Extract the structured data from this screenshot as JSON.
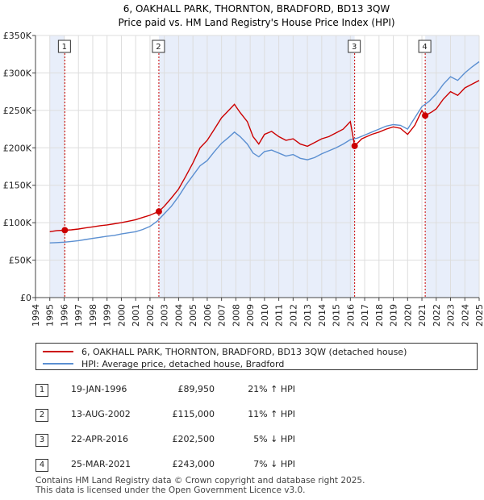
{
  "chart_data": {
    "type": "line",
    "title": "6, OAKHALL PARK, THORNTON, BRADFORD, BD13 3QW",
    "subtitle": "Price paid vs. HM Land Registry's House Price Index (HPI)",
    "xlim": [
      1994,
      2025
    ],
    "ylim": [
      0,
      350000
    ],
    "x_ticks": [
      "1994",
      "1995",
      "1996",
      "1997",
      "1998",
      "1999",
      "2000",
      "2001",
      "2002",
      "2003",
      "2004",
      "2005",
      "2006",
      "2007",
      "2008",
      "2009",
      "2010",
      "2011",
      "2012",
      "2013",
      "2014",
      "2015",
      "2016",
      "2017",
      "2018",
      "2019",
      "2020",
      "2021",
      "2022",
      "2023",
      "2024",
      "2025"
    ],
    "y_ticks": [
      {
        "value": 0,
        "label": "£0"
      },
      {
        "value": 50000,
        "label": "£50K"
      },
      {
        "value": 100000,
        "label": "£100K"
      },
      {
        "value": 150000,
        "label": "£150K"
      },
      {
        "value": 200000,
        "label": "£200K"
      },
      {
        "value": 250000,
        "label": "£250K"
      },
      {
        "value": 300000,
        "label": "£300K"
      },
      {
        "value": 350000,
        "label": "£350K"
      }
    ],
    "shaded_spans": [
      [
        1995.0,
        1996.05
      ],
      [
        2002.62,
        2016.3
      ],
      [
        2021.23,
        2025
      ]
    ],
    "series": [
      {
        "name": "6, OAKHALL PARK, THORNTON, BRADFORD, BD13 3QW (detached house)",
        "color": "#cc0000",
        "points": [
          [
            1995.0,
            88000
          ],
          [
            1995.5,
            89500
          ],
          [
            1996.05,
            89950
          ],
          [
            1996.5,
            90500
          ],
          [
            1997,
            91500
          ],
          [
            1997.5,
            93000
          ],
          [
            1998,
            94500
          ],
          [
            1998.5,
            96000
          ],
          [
            1999,
            97000
          ],
          [
            1999.5,
            98500
          ],
          [
            2000,
            100000
          ],
          [
            2000.5,
            102000
          ],
          [
            2001,
            104000
          ],
          [
            2001.5,
            107000
          ],
          [
            2002,
            110000
          ],
          [
            2002.62,
            115000
          ],
          [
            2003,
            122000
          ],
          [
            2003.5,
            133000
          ],
          [
            2004,
            145000
          ],
          [
            2004.5,
            162000
          ],
          [
            2005,
            180000
          ],
          [
            2005.5,
            200000
          ],
          [
            2006,
            210000
          ],
          [
            2006.5,
            225000
          ],
          [
            2007,
            240000
          ],
          [
            2007.5,
            250000
          ],
          [
            2007.9,
            258000
          ],
          [
            2008.3,
            247000
          ],
          [
            2008.8,
            235000
          ],
          [
            2009.2,
            215000
          ],
          [
            2009.6,
            205000
          ],
          [
            2010,
            218000
          ],
          [
            2010.5,
            222000
          ],
          [
            2011,
            215000
          ],
          [
            2011.5,
            210000
          ],
          [
            2012,
            212000
          ],
          [
            2012.5,
            205000
          ],
          [
            2013,
            202000
          ],
          [
            2013.5,
            207000
          ],
          [
            2014,
            212000
          ],
          [
            2014.5,
            215000
          ],
          [
            2015,
            220000
          ],
          [
            2015.5,
            225000
          ],
          [
            2016.0,
            235000
          ],
          [
            2016.3,
            202500
          ],
          [
            2016.8,
            212000
          ],
          [
            2017.5,
            218000
          ],
          [
            2018,
            221000
          ],
          [
            2018.5,
            225000
          ],
          [
            2019,
            228000
          ],
          [
            2019.5,
            226000
          ],
          [
            2020,
            218000
          ],
          [
            2020.5,
            230000
          ],
          [
            2021.0,
            250000
          ],
          [
            2021.23,
            243000
          ],
          [
            2021.7,
            248000
          ],
          [
            2022,
            252000
          ],
          [
            2022.5,
            265000
          ],
          [
            2023,
            275000
          ],
          [
            2023.5,
            270000
          ],
          [
            2024,
            280000
          ],
          [
            2024.5,
            285000
          ],
          [
            2025,
            290000
          ]
        ]
      },
      {
        "name": "HPI: Average price, detached house, Bradford",
        "color": "#5b8fd1",
        "points": [
          [
            1995.0,
            73000
          ],
          [
            1995.5,
            73500
          ],
          [
            1996,
            74000
          ],
          [
            1996.5,
            75000
          ],
          [
            1997,
            76000
          ],
          [
            1997.5,
            77500
          ],
          [
            1998,
            79000
          ],
          [
            1998.5,
            80500
          ],
          [
            1999,
            82000
          ],
          [
            1999.5,
            83000
          ],
          [
            2000,
            85000
          ],
          [
            2000.5,
            86500
          ],
          [
            2001,
            88000
          ],
          [
            2001.5,
            91000
          ],
          [
            2002,
            95000
          ],
          [
            2002.5,
            102000
          ],
          [
            2003,
            112000
          ],
          [
            2003.5,
            122000
          ],
          [
            2004,
            135000
          ],
          [
            2004.5,
            150000
          ],
          [
            2005,
            163000
          ],
          [
            2005.5,
            176000
          ],
          [
            2006,
            183000
          ],
          [
            2006.5,
            195000
          ],
          [
            2007,
            206000
          ],
          [
            2007.5,
            214000
          ],
          [
            2007.9,
            221000
          ],
          [
            2008.3,
            215000
          ],
          [
            2008.8,
            205000
          ],
          [
            2009.2,
            193000
          ],
          [
            2009.6,
            188000
          ],
          [
            2010,
            195000
          ],
          [
            2010.5,
            197000
          ],
          [
            2011,
            193000
          ],
          [
            2011.5,
            189000
          ],
          [
            2012,
            191000
          ],
          [
            2012.5,
            186000
          ],
          [
            2013,
            184000
          ],
          [
            2013.5,
            187000
          ],
          [
            2014,
            192000
          ],
          [
            2014.5,
            196000
          ],
          [
            2015,
            200000
          ],
          [
            2015.5,
            205000
          ],
          [
            2016,
            211000
          ],
          [
            2016.5,
            213000
          ],
          [
            2017,
            217000
          ],
          [
            2017.5,
            221000
          ],
          [
            2018,
            225000
          ],
          [
            2018.5,
            229000
          ],
          [
            2019,
            231000
          ],
          [
            2019.5,
            230000
          ],
          [
            2020,
            225000
          ],
          [
            2020.5,
            240000
          ],
          [
            2021,
            255000
          ],
          [
            2021.5,
            262000
          ],
          [
            2022,
            272000
          ],
          [
            2022.5,
            285000
          ],
          [
            2023,
            295000
          ],
          [
            2023.5,
            290000
          ],
          [
            2024,
            300000
          ],
          [
            2024.5,
            308000
          ],
          [
            2025,
            315000
          ]
        ]
      }
    ],
    "sales": [
      {
        "num": "1",
        "x": 1996.05,
        "price": 89950
      },
      {
        "num": "2",
        "x": 2002.62,
        "price": 115000
      },
      {
        "num": "3",
        "x": 2016.3,
        "price": 202500
      },
      {
        "num": "4",
        "x": 2021.23,
        "price": 243000
      }
    ]
  },
  "legend": {
    "property_label": "6, OAKHALL PARK, THORNTON, BRADFORD, BD13 3QW (detached house)",
    "hpi_label": "HPI: Average price, detached house, Bradford"
  },
  "sales_table": [
    {
      "num": "1",
      "date": "19-JAN-1996",
      "price": "£89,950",
      "hpi": "21% ↑ HPI"
    },
    {
      "num": "2",
      "date": "13-AUG-2002",
      "price": "£115,000",
      "hpi": "11% ↑ HPI"
    },
    {
      "num": "3",
      "date": "22-APR-2016",
      "price": "£202,500",
      "hpi": "5% ↓ HPI"
    },
    {
      "num": "4",
      "date": "25-MAR-2021",
      "price": "£243,000",
      "hpi": "7% ↓ HPI"
    }
  ],
  "footer": {
    "line1": "Contains HM Land Registry data © Crown copyright and database right 2025.",
    "line2": "This data is licensed under the Open Government Licence v3.0."
  },
  "colors": {
    "property": "#cc0000",
    "hpi": "#5b8fd1",
    "shade": "#e8eefa",
    "grid": "#dddddd"
  }
}
